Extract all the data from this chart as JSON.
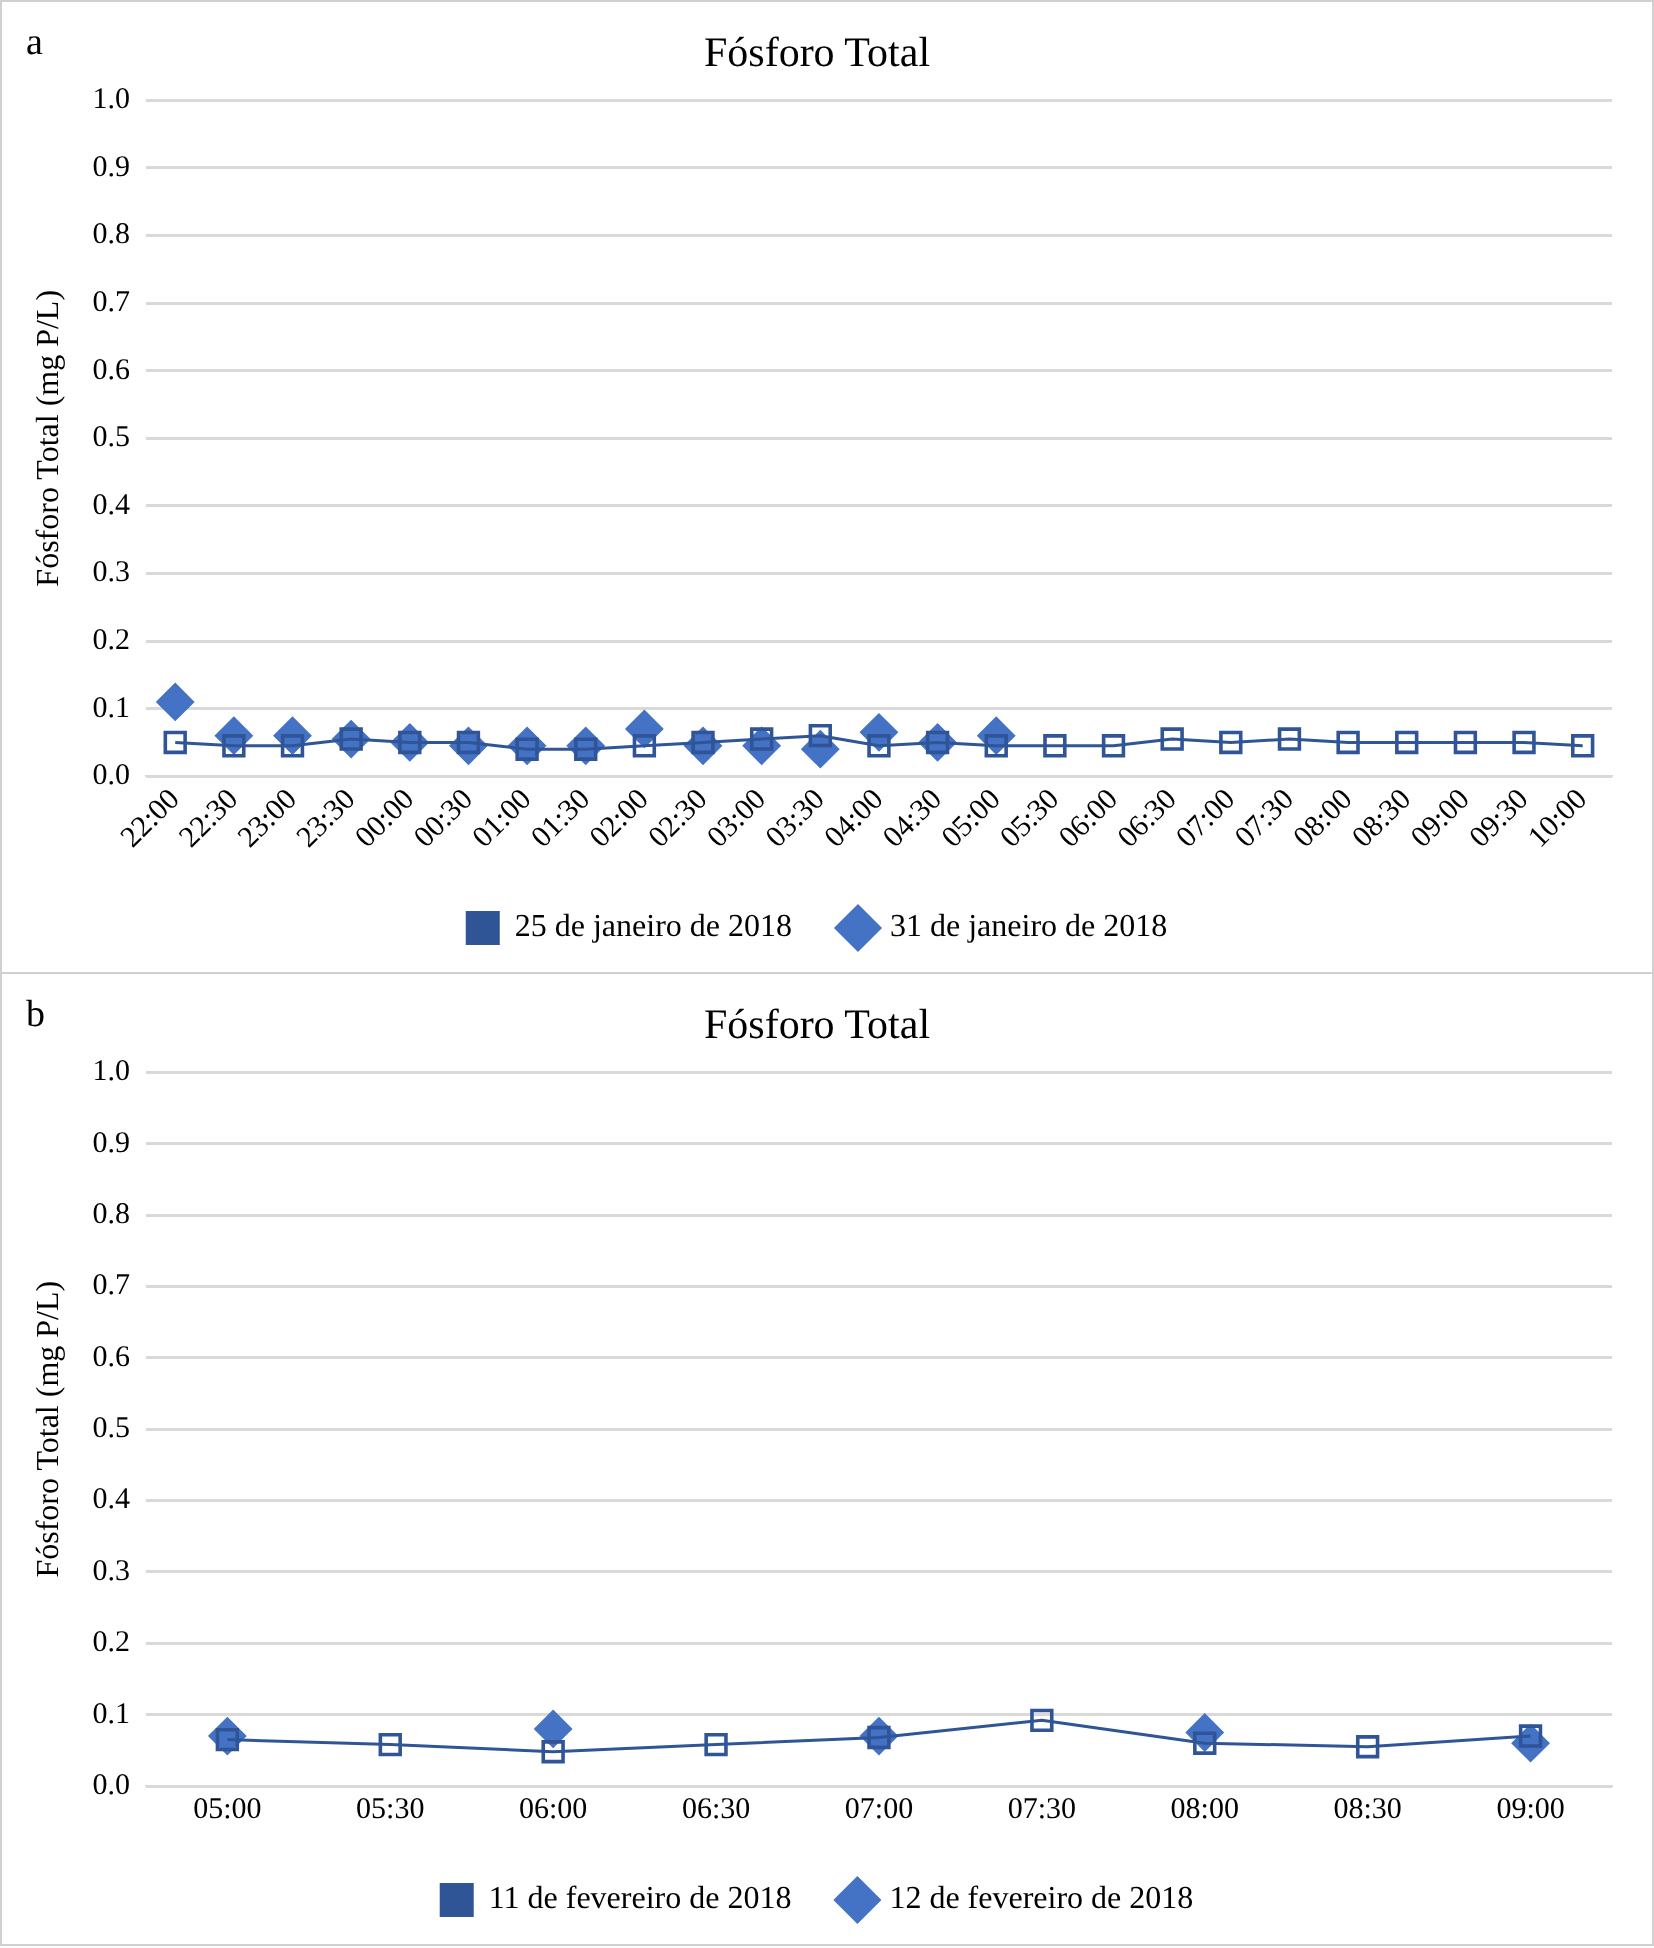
{
  "chart_data": [
    {
      "type": "line",
      "title": "Fósforo Total",
      "ylabel": "Fósforo Total (mg P/L)",
      "annotations": [
        "a"
      ],
      "categories": [
        "22:00",
        "22:30",
        "23:00",
        "23:30",
        "00:00",
        "00:30",
        "01:00",
        "01:30",
        "02:00",
        "02:30",
        "03:00",
        "03:30",
        "04:00",
        "04:30",
        "05:00",
        "05:30",
        "06:00",
        "06:30",
        "07:00",
        "07:30",
        "08:00",
        "08:30",
        "09:00",
        "09:30",
        "10:00"
      ],
      "series": [
        {
          "name": "25 de janeiro de 2018",
          "marker": "square",
          "color": "#2f5597",
          "values": [
            0.05,
            0.045,
            0.045,
            0.055,
            0.05,
            0.05,
            0.04,
            0.04,
            0.045,
            0.05,
            0.055,
            0.06,
            0.045,
            0.05,
            0.045,
            0.045,
            0.045,
            0.055,
            0.05,
            0.055,
            0.05,
            0.05,
            0.05,
            0.05,
            0.045
          ]
        },
        {
          "name": "31 de janeiro de 2018",
          "type": "scatter",
          "marker": "diamond",
          "color": "#4472c4",
          "values": [
            0.11,
            0.06,
            0.06,
            0.055,
            0.05,
            0.045,
            0.045,
            0.045,
            0.07,
            0.045,
            0.045,
            0.04,
            0.065,
            0.05,
            0.06,
            null,
            null,
            null,
            null,
            null,
            null,
            null,
            null,
            null,
            null
          ]
        }
      ],
      "ylim": [
        0,
        1
      ],
      "yticks": [
        {
          "value": 0,
          "label": "0.0"
        },
        {
          "value": 0.1,
          "label": "0.1"
        },
        {
          "value": 0.2,
          "label": "0.2"
        },
        {
          "value": 0.3,
          "label": "0.3"
        },
        {
          "value": 0.4,
          "label": "0.4"
        },
        {
          "value": 0.5,
          "label": "0.5"
        },
        {
          "value": 0.6,
          "label": "0.6"
        },
        {
          "value": 0.7,
          "label": "0.7"
        },
        {
          "value": 0.8,
          "label": "0.8"
        },
        {
          "value": 0.9,
          "label": "0.9"
        },
        {
          "value": 1,
          "label": "1.0"
        }
      ],
      "grid": "y",
      "legend": "bottom"
    },
    {
      "type": "line",
      "title": "Fósforo Total",
      "ylabel": "Fósforo Total (mg P/L)",
      "annotations": [
        "b"
      ],
      "categories": [
        "05:00",
        "05:30",
        "06:00",
        "06:30",
        "07:00",
        "07:30",
        "08:00",
        "08:30",
        "09:00"
      ],
      "series": [
        {
          "name": "11 de fevereiro de 2018",
          "marker": "square",
          "color": "#2f5597",
          "values": [
            0.065,
            0.058,
            0.048,
            0.058,
            0.068,
            0.092,
            0.06,
            0.055,
            0.07
          ]
        },
        {
          "name": "12 de fevereiro de 2018",
          "type": "scatter",
          "marker": "diamond",
          "color": "#4472c4",
          "values": [
            0.07,
            null,
            0.08,
            null,
            0.07,
            null,
            0.075,
            null,
            0.06
          ]
        }
      ],
      "ylim": [
        0,
        1
      ],
      "yticks": [
        {
          "value": 0,
          "label": "0.0"
        },
        {
          "value": 0.1,
          "label": "0.1"
        },
        {
          "value": 0.2,
          "label": "0.2"
        },
        {
          "value": 0.3,
          "label": "0.3"
        },
        {
          "value": 0.4,
          "label": "0.4"
        },
        {
          "value": 0.5,
          "label": "0.5"
        },
        {
          "value": 0.6,
          "label": "0.6"
        },
        {
          "value": 0.7,
          "label": "0.7"
        },
        {
          "value": 0.8,
          "label": "0.8"
        },
        {
          "value": 0.9,
          "label": "0.9"
        },
        {
          "value": 1,
          "label": "1.0"
        }
      ],
      "grid": "y",
      "legend": "bottom"
    }
  ]
}
